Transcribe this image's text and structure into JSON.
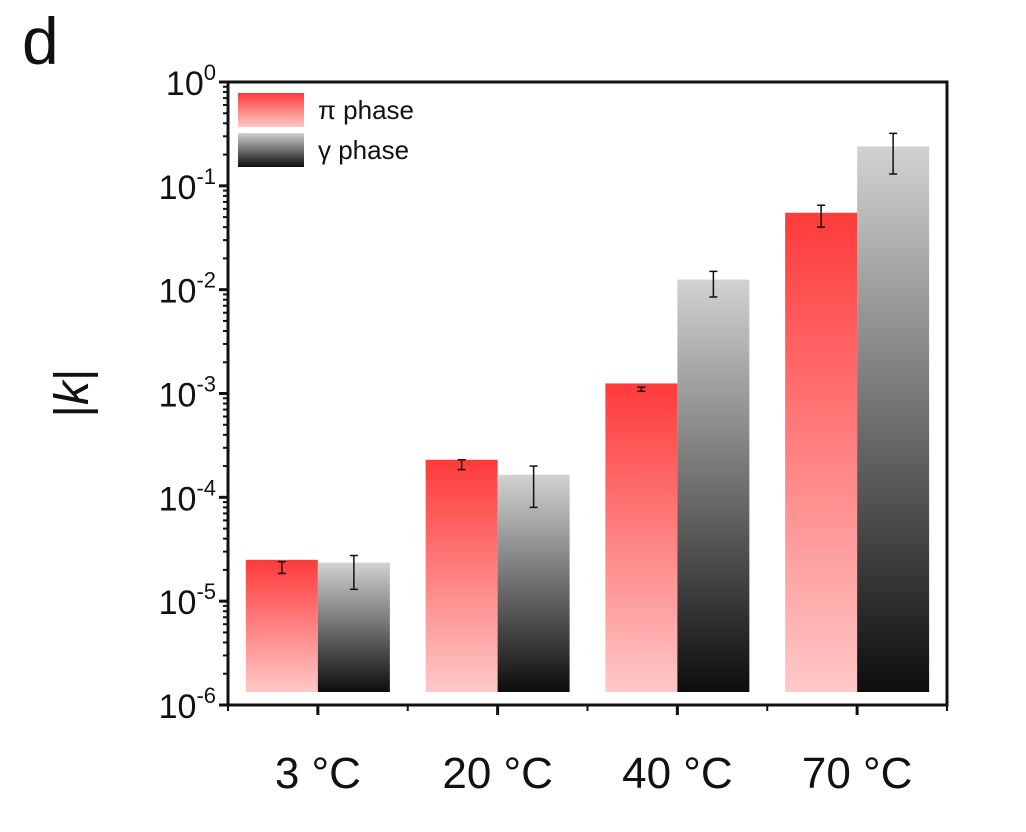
{
  "panel_label": "d",
  "colors": {
    "pi_top": "#ff3a3a",
    "pi_bottom": "#ffc8c8",
    "gamma_top": "#d2d2d2",
    "gamma_bottom": "#0d0d0d",
    "axis": "#111111"
  },
  "chart_data": {
    "type": "bar",
    "ylabel": "|k|",
    "yscale": "log",
    "ylim": [
      1e-06,
      1
    ],
    "yticks": [
      {
        "value": 1e-06,
        "base": "10",
        "exp": "-6"
      },
      {
        "value": 1e-05,
        "base": "10",
        "exp": "-5"
      },
      {
        "value": 0.0001,
        "base": "10",
        "exp": "-4"
      },
      {
        "value": 0.001,
        "base": "10",
        "exp": "-3"
      },
      {
        "value": 0.01,
        "base": "10",
        "exp": "-2"
      },
      {
        "value": 0.1,
        "base": "10",
        "exp": "-1"
      },
      {
        "value": 1,
        "base": "10",
        "exp": "0"
      }
    ],
    "categories": [
      "3 °C",
      "20 °C",
      "40 °C",
      "70 °C"
    ],
    "legend_position": "top-left",
    "series": [
      {
        "name": "π phase",
        "values": [
          2.5e-05,
          0.00023,
          0.00125,
          0.055
        ],
        "err_low": [
          1.85e-05,
          0.000185,
          0.00105,
          0.04
        ],
        "err_high": [
          2.4e-05,
          0.00023,
          0.00115,
          0.065
        ]
      },
      {
        "name": "γ phase",
        "values": [
          2.35e-05,
          0.000165,
          0.0125,
          0.24
        ],
        "err_low": [
          1.3e-05,
          8e-05,
          0.0085,
          0.13
        ],
        "err_high": [
          2.75e-05,
          0.0002,
          0.015,
          0.32
        ]
      }
    ]
  }
}
